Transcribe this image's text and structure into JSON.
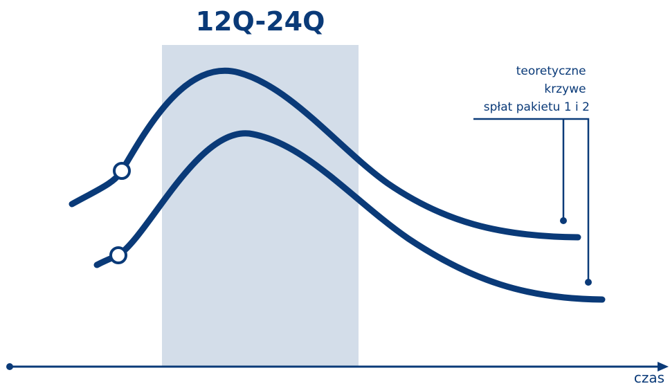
{
  "header": {
    "title": "12Q-24Q"
  },
  "annotation": {
    "lines": [
      "teoretyczne",
      "krzywe",
      "spłat pakietu 1 i 2"
    ]
  },
  "axis": {
    "label": "czas"
  },
  "colors": {
    "curve": "#0a3a78",
    "highlight_band": "#d3dde9",
    "background": "#ffffff"
  }
}
